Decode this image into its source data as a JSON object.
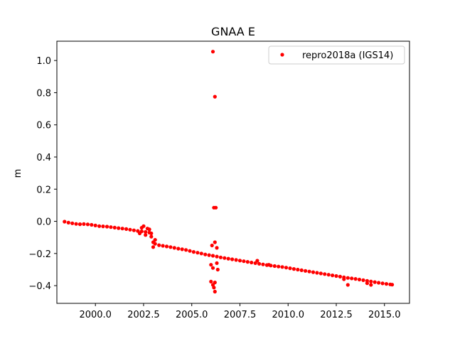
{
  "chart_data": {
    "type": "scatter",
    "title": "GNAA E",
    "xlabel": "",
    "ylabel": "m",
    "xlim": [
      1998.0,
      2016.3
    ],
    "ylim": [
      -0.51,
      1.12
    ],
    "xticks": [
      2000.0,
      2002.5,
      2005.0,
      2007.5,
      2010.0,
      2012.5,
      2015.0
    ],
    "xtick_labels": [
      "2000.0",
      "2002.5",
      "2005.0",
      "2007.5",
      "2010.0",
      "2012.5",
      "2015.0"
    ],
    "yticks": [
      -0.4,
      -0.2,
      0.0,
      0.2,
      0.4,
      0.6,
      0.8,
      1.0
    ],
    "ytick_labels": [
      "−0.4",
      "−0.2",
      "0.0",
      "0.2",
      "0.4",
      "0.6",
      "0.8",
      "1.0"
    ],
    "grid": false,
    "legend_position": "top-right",
    "series": [
      {
        "name": "repro2018a (IGS14)",
        "color": "#ff0000",
        "marker": "circle",
        "points": [
          [
            1998.4,
            -0.002
          ],
          [
            1998.6,
            -0.008
          ],
          [
            1998.8,
            -0.012
          ],
          [
            1999.0,
            -0.016
          ],
          [
            1999.2,
            -0.018
          ],
          [
            1999.4,
            -0.017
          ],
          [
            1999.6,
            -0.019
          ],
          [
            1999.8,
            -0.022
          ],
          [
            2000.0,
            -0.026
          ],
          [
            2000.2,
            -0.03
          ],
          [
            2000.4,
            -0.031
          ],
          [
            2000.6,
            -0.033
          ],
          [
            2000.8,
            -0.036
          ],
          [
            2001.0,
            -0.039
          ],
          [
            2001.2,
            -0.042
          ],
          [
            2001.4,
            -0.045
          ],
          [
            2001.6,
            -0.048
          ],
          [
            2001.8,
            -0.052
          ],
          [
            2002.0,
            -0.056
          ],
          [
            2002.2,
            -0.06
          ],
          [
            2002.4,
            -0.062
          ],
          [
            2002.6,
            -0.066
          ],
          [
            2002.8,
            -0.07
          ],
          [
            2002.9,
            -0.095
          ],
          [
            2003.0,
            -0.13
          ],
          [
            2003.1,
            -0.14
          ],
          [
            2003.3,
            -0.148
          ],
          [
            2003.5,
            -0.152
          ],
          [
            2003.7,
            -0.156
          ],
          [
            2003.9,
            -0.16
          ],
          [
            2004.1,
            -0.165
          ],
          [
            2004.3,
            -0.17
          ],
          [
            2004.5,
            -0.174
          ],
          [
            2004.7,
            -0.178
          ],
          [
            2004.9,
            -0.184
          ],
          [
            2005.1,
            -0.19
          ],
          [
            2005.3,
            -0.195
          ],
          [
            2005.5,
            -0.2
          ],
          [
            2005.7,
            -0.206
          ],
          [
            2005.9,
            -0.21
          ],
          [
            2006.1,
            -0.214
          ],
          [
            2006.3,
            -0.219
          ],
          [
            2006.5,
            -0.224
          ],
          [
            2006.7,
            -0.228
          ],
          [
            2006.9,
            -0.232
          ],
          [
            2007.1,
            -0.236
          ],
          [
            2007.3,
            -0.24
          ],
          [
            2007.5,
            -0.244
          ],
          [
            2007.7,
            -0.248
          ],
          [
            2007.9,
            -0.252
          ],
          [
            2008.1,
            -0.256
          ],
          [
            2008.3,
            -0.26
          ],
          [
            2008.5,
            -0.264
          ],
          [
            2008.7,
            -0.268
          ],
          [
            2008.9,
            -0.272
          ],
          [
            2009.1,
            -0.275
          ],
          [
            2009.3,
            -0.278
          ],
          [
            2009.5,
            -0.281
          ],
          [
            2009.7,
            -0.284
          ],
          [
            2009.9,
            -0.288
          ],
          [
            2010.1,
            -0.292
          ],
          [
            2010.3,
            -0.296
          ],
          [
            2010.5,
            -0.3
          ],
          [
            2010.7,
            -0.304
          ],
          [
            2010.9,
            -0.308
          ],
          [
            2011.1,
            -0.312
          ],
          [
            2011.3,
            -0.316
          ],
          [
            2011.5,
            -0.32
          ],
          [
            2011.7,
            -0.324
          ],
          [
            2011.9,
            -0.328
          ],
          [
            2012.1,
            -0.332
          ],
          [
            2012.3,
            -0.336
          ],
          [
            2012.5,
            -0.34
          ],
          [
            2012.7,
            -0.344
          ],
          [
            2012.9,
            -0.348
          ],
          [
            2013.1,
            -0.352
          ],
          [
            2013.3,
            -0.355
          ],
          [
            2013.5,
            -0.358
          ],
          [
            2013.7,
            -0.362
          ],
          [
            2013.9,
            -0.366
          ],
          [
            2014.1,
            -0.37
          ],
          [
            2014.3,
            -0.374
          ],
          [
            2014.5,
            -0.378
          ],
          [
            2014.7,
            -0.382
          ],
          [
            2014.9,
            -0.386
          ],
          [
            2015.1,
            -0.389
          ],
          [
            2015.3,
            -0.392
          ],
          [
            2015.4,
            -0.394
          ],
          [
            2002.4,
            -0.04
          ],
          [
            2002.5,
            -0.03
          ],
          [
            2002.7,
            -0.045
          ],
          [
            2002.8,
            -0.05
          ],
          [
            2002.9,
            -0.075
          ],
          [
            2002.6,
            -0.085
          ],
          [
            2002.3,
            -0.075
          ],
          [
            2003.0,
            -0.16
          ],
          [
            2003.1,
            -0.115
          ],
          [
            2006.1,
            1.055
          ],
          [
            2006.2,
            0.775
          ],
          [
            2006.15,
            0.085
          ],
          [
            2006.25,
            0.085
          ],
          [
            2006.05,
            -0.15
          ],
          [
            2006.2,
            -0.13
          ],
          [
            2006.3,
            -0.165
          ],
          [
            2006.0,
            -0.27
          ],
          [
            2006.1,
            -0.29
          ],
          [
            2006.3,
            -0.26
          ],
          [
            2006.35,
            -0.3
          ],
          [
            2006.0,
            -0.375
          ],
          [
            2006.1,
            -0.395
          ],
          [
            2006.2,
            -0.38
          ],
          [
            2006.15,
            -0.412
          ],
          [
            2006.2,
            -0.437
          ],
          [
            2008.4,
            -0.245
          ],
          [
            2009.0,
            -0.27
          ],
          [
            2012.9,
            -0.36
          ],
          [
            2013.1,
            -0.395
          ],
          [
            2014.1,
            -0.385
          ],
          [
            2014.3,
            -0.395
          ]
        ]
      }
    ]
  }
}
